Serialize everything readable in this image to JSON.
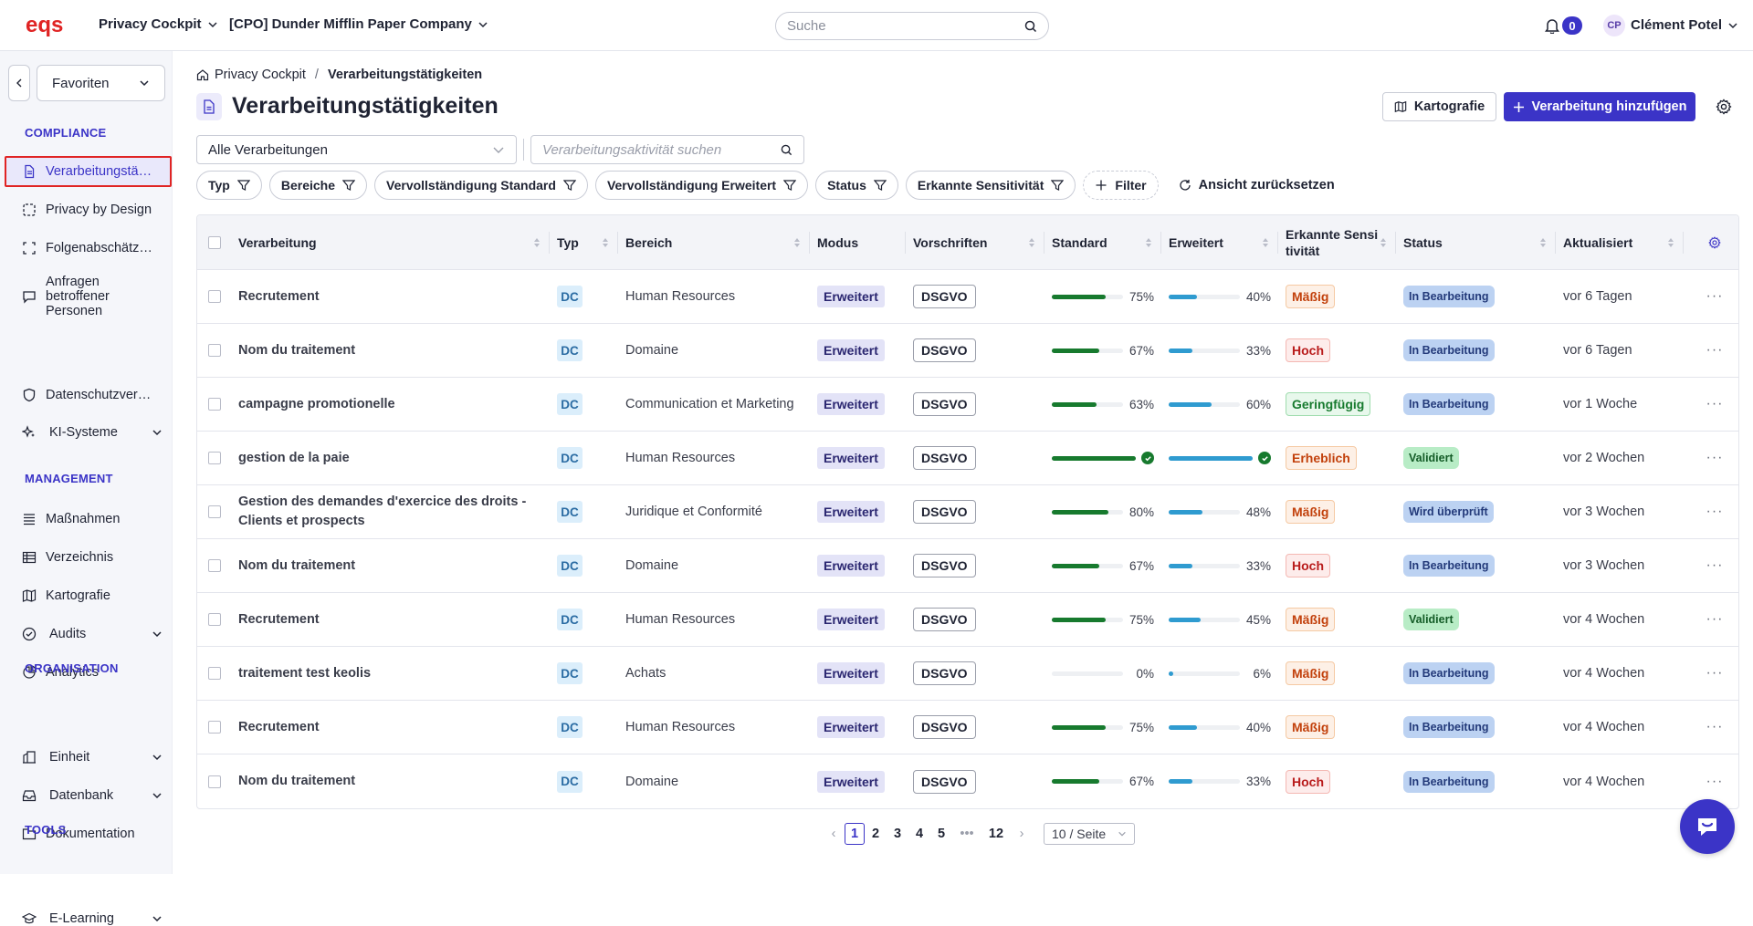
{
  "topbar": {
    "logo_text": "eqs",
    "product_select": "Privacy Cockpit",
    "company_select": "[CPO] Dunder Mifflin Paper Company",
    "search_placeholder": "Suche",
    "notifications_count": "0",
    "user_initials": "CP",
    "user_name": "Clément Potel"
  },
  "sidebar": {
    "favorites_label": "Favoriten",
    "sections": {
      "compliance": "COMPLIANCE",
      "management": "MANAGEMENT",
      "organisation": "ORGANISATION",
      "tools": "TOOLS"
    },
    "items": {
      "verarbeitung": "Verarbeitungstätigkeiten",
      "privacy_design": "Privacy by Design",
      "folgen": "Folgenabschätzungen",
      "anfragen": "Anfragen betroffener Personen",
      "datenschutz": "Datenschutzverstöße",
      "ki": "KI-Systeme",
      "massnahmen": "Maßnahmen",
      "verzeichnis": "Verzeichnis",
      "kartografie": "Kartografie",
      "audits": "Audits",
      "analytics": "Analytics",
      "einheit": "Einheit",
      "datenbank": "Datenbank",
      "dokumentation": "Dokumentation",
      "elearning": "E-Learning"
    }
  },
  "main": {
    "breadcrumb_root": "Privacy Cockpit",
    "breadcrumb_sep": "/",
    "breadcrumb_current": "Verarbeitungstätigkeiten",
    "title": "Verarbeitungstätigkeiten",
    "btn_kartografie": "Kartografie",
    "btn_add": "Verarbeitung hinzufügen",
    "filter_all": "Alle Verarbeitungen",
    "search_placeholder": "Verarbeitungsaktivität suchen",
    "chips": {
      "typ": "Typ",
      "bereiche": "Bereiche",
      "std": "Vervollständigung Standard",
      "erw": "Vervollständigung Erweitert",
      "status": "Status",
      "sens": "Erkannte Sensitivität",
      "filter": "Filter"
    },
    "reset_label": "Ansicht zurücksetzen"
  },
  "table": {
    "headers": {
      "name": "Verarbeitung",
      "typ": "Typ",
      "bereich": "Bereich",
      "modus": "Modus",
      "vorschriften": "Vorschriften",
      "standard": "Standard",
      "erweitert": "Erweitert",
      "sens_line1": "Erkannte Sensi",
      "sens_line2": "tivität",
      "status": "Status",
      "aktualisiert": "Aktualisiert"
    },
    "colors": {
      "sens_maessig": {
        "bg": "#fdf0e6",
        "border": "#f5c9a3",
        "fg": "#c2410c"
      },
      "sens_hoch": {
        "bg": "#fdeceb",
        "border": "#f4b8b3",
        "fg": "#b91c1c"
      },
      "sens_geringfuegig": {
        "bg": "#e8f8ec",
        "border": "#9fdcae",
        "fg": "#177a2e"
      },
      "sens_erheblich": {
        "bg": "#fdf0e6",
        "border": "#f5c9a3",
        "fg": "#c2410c"
      },
      "status_bearbeitung": {
        "bg": "#bcd2f2",
        "fg": "#233a7a"
      },
      "status_validiert": {
        "bg": "#b8ecc6",
        "fg": "#145c27"
      },
      "status_ueberprueft": {
        "bg": "#bcd2f2",
        "fg": "#233a7a"
      }
    },
    "rows": [
      {
        "name": "Recrutement",
        "typ": "DC",
        "bereich": "Human Resources",
        "modus": "Erweitert",
        "vorschrift": "DSGVO",
        "std": 75,
        "std_label": "75%",
        "erw": 40,
        "erw_label": "40%",
        "sens": "Mäßig",
        "sens_key": "sens_maessig",
        "status": "In Bearbeitung",
        "status_key": "status_bearbeitung",
        "updated": "vor 6 Tagen"
      },
      {
        "name": "Nom du traitement",
        "typ": "DC",
        "bereich": "Domaine",
        "modus": "Erweitert",
        "vorschrift": "DSGVO",
        "std": 67,
        "std_label": "67%",
        "erw": 33,
        "erw_label": "33%",
        "sens": "Hoch",
        "sens_key": "sens_hoch",
        "status": "In Bearbeitung",
        "status_key": "status_bearbeitung",
        "updated": "vor 6 Tagen"
      },
      {
        "name": "campagne promotionelle",
        "typ": "DC",
        "bereich": "Communication et Marketing",
        "modus": "Erweitert",
        "vorschrift": "DSGVO",
        "std": 63,
        "std_label": "63%",
        "erw": 60,
        "erw_label": "60%",
        "sens": "Geringfügig",
        "sens_key": "sens_geringfuegig",
        "status": "In Bearbeitung",
        "status_key": "status_bearbeitung",
        "updated": "vor 1 Woche"
      },
      {
        "name": "gestion de la paie",
        "typ": "DC",
        "bereich": "Human Resources",
        "modus": "Erweitert",
        "vorschrift": "DSGVO",
        "std": 100,
        "std_label": "",
        "erw": 100,
        "erw_label": "",
        "sens": "Erheblich",
        "sens_key": "sens_erheblich",
        "status": "Validiert",
        "status_key": "status_validiert",
        "updated": "vor 2 Wochen"
      },
      {
        "name": "Gestion des demandes d'exercice des droits - Clients et prospects",
        "typ": "DC",
        "bereich": "Juridique et Conformité",
        "modus": "Erweitert",
        "vorschrift": "DSGVO",
        "std": 80,
        "std_label": "80%",
        "erw": 48,
        "erw_label": "48%",
        "sens": "Mäßig",
        "sens_key": "sens_maessig",
        "status": "Wird überprüft",
        "status_key": "status_ueberprueft",
        "updated": "vor 3 Wochen"
      },
      {
        "name": "Nom du traitement",
        "typ": "DC",
        "bereich": "Domaine",
        "modus": "Erweitert",
        "vorschrift": "DSGVO",
        "std": 67,
        "std_label": "67%",
        "erw": 33,
        "erw_label": "33%",
        "sens": "Hoch",
        "sens_key": "sens_hoch",
        "status": "In Bearbeitung",
        "status_key": "status_bearbeitung",
        "updated": "vor 3 Wochen"
      },
      {
        "name": "Recrutement",
        "typ": "DC",
        "bereich": "Human Resources",
        "modus": "Erweitert",
        "vorschrift": "DSGVO",
        "std": 75,
        "std_label": "75%",
        "erw": 45,
        "erw_label": "45%",
        "sens": "Mäßig",
        "sens_key": "sens_maessig",
        "status": "Validiert",
        "status_key": "status_validiert",
        "updated": "vor 4 Wochen"
      },
      {
        "name": "traitement test keolis",
        "typ": "DC",
        "bereich": "Achats",
        "modus": "Erweitert",
        "vorschrift": "DSGVO",
        "std": 0,
        "std_label": "0%",
        "erw": 6,
        "erw_label": "6%",
        "sens": "Mäßig",
        "sens_key": "sens_maessig",
        "status": "In Bearbeitung",
        "status_key": "status_bearbeitung",
        "updated": "vor 4 Wochen"
      },
      {
        "name": "Recrutement",
        "typ": "DC",
        "bereich": "Human Resources",
        "modus": "Erweitert",
        "vorschrift": "DSGVO",
        "std": 75,
        "std_label": "75%",
        "erw": 40,
        "erw_label": "40%",
        "sens": "Mäßig",
        "sens_key": "sens_maessig",
        "status": "In Bearbeitung",
        "status_key": "status_bearbeitung",
        "updated": "vor 4 Wochen"
      },
      {
        "name": "Nom du traitement",
        "typ": "DC",
        "bereich": "Domaine",
        "modus": "Erweitert",
        "vorschrift": "DSGVO",
        "std": 67,
        "std_label": "67%",
        "erw": 33,
        "erw_label": "33%",
        "sens": "Hoch",
        "sens_key": "sens_hoch",
        "status": "In Bearbeitung",
        "status_key": "status_bearbeitung",
        "updated": "vor 4 Wochen"
      }
    ]
  },
  "pagination": {
    "pages": [
      "1",
      "2",
      "3",
      "4",
      "5"
    ],
    "ellipsis": "•••",
    "last": "12",
    "per_page": "10 / Seite",
    "prev": "‹",
    "next": "›"
  }
}
